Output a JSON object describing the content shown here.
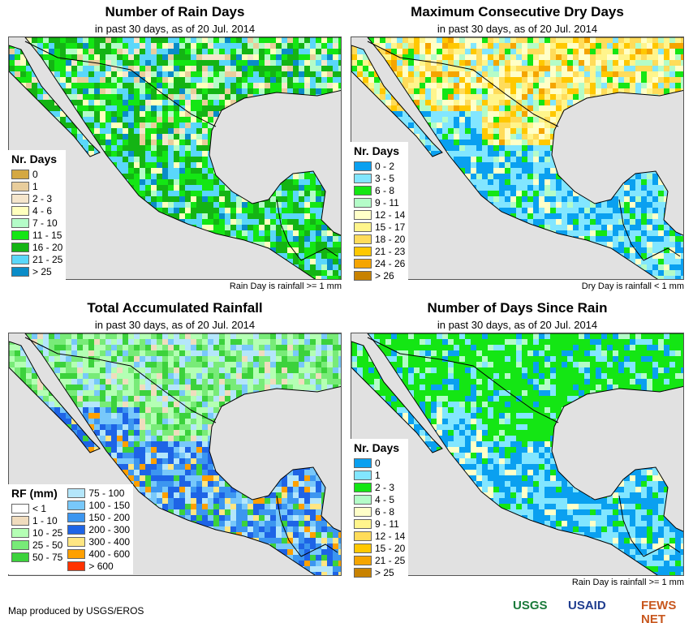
{
  "panels": [
    {
      "title": "Number of Rain Days",
      "subtitle": "in past 30 days, as of 20 Jul. 2014",
      "note": "Rain Day is rainfall >= 1 mm",
      "legend": {
        "title": "Nr. Days",
        "items": [
          {
            "label": "0",
            "color": "#d4a843"
          },
          {
            "label": "1",
            "color": "#e8cd9c"
          },
          {
            "label": "2 - 3",
            "color": "#f5e6cc"
          },
          {
            "label": "4 - 6",
            "color": "#ffffbe"
          },
          {
            "label": "7 - 10",
            "color": "#b4fcc8"
          },
          {
            "label": "11 - 15",
            "color": "#14e614"
          },
          {
            "label": "16 - 20",
            "color": "#14b414"
          },
          {
            "label": "21 - 25",
            "color": "#5ad7fa"
          },
          {
            "label": "> 25",
            "color": "#0a8cc8"
          }
        ]
      }
    },
    {
      "title": "Maximum Consecutive Dry Days",
      "subtitle": "in past 30 days, as of 20 Jul. 2014",
      "note": "Dry Day is rainfall < 1 mm",
      "legend": {
        "title": "Nr. Days",
        "items": [
          {
            "label": "0 - 2",
            "color": "#0aa0f0"
          },
          {
            "label": "3 - 5",
            "color": "#82e6ff"
          },
          {
            "label": "6 - 8",
            "color": "#14e614"
          },
          {
            "label": "9 - 11",
            "color": "#b4fcc8"
          },
          {
            "label": "12 - 14",
            "color": "#ffffc8"
          },
          {
            "label": "15 - 17",
            "color": "#fff58c"
          },
          {
            "label": "18 - 20",
            "color": "#ffdc5a"
          },
          {
            "label": "21 - 23",
            "color": "#ffc800"
          },
          {
            "label": "24 - 26",
            "color": "#f5a500"
          },
          {
            "label": "> 26",
            "color": "#c88200"
          }
        ]
      }
    },
    {
      "title": "Total Accumulated Rainfall",
      "subtitle": "in past 30 days, as of 20 Jul. 2014",
      "note": "",
      "legend": {
        "title": "RF (mm)",
        "items": [
          {
            "label": "< 1",
            "color": "#ffffff"
          },
          {
            "label": "1 - 10",
            "color": "#f0dcbe"
          },
          {
            "label": "10 - 25",
            "color": "#b4ffb4"
          },
          {
            "label": "25 - 50",
            "color": "#78eb78"
          },
          {
            "label": "50 - 75",
            "color": "#3cd23c"
          }
        ],
        "items2": [
          {
            "label": "75 - 100",
            "color": "#b4e6fa"
          },
          {
            "label": "100 - 150",
            "color": "#78c8fa"
          },
          {
            "label": "150 - 200",
            "color": "#3c96f0"
          },
          {
            "label": "200 - 300",
            "color": "#1e64e6"
          },
          {
            "label": "300 - 400",
            "color": "#ffe682"
          },
          {
            "label": "400 - 600",
            "color": "#ffa000"
          },
          {
            "label": "> 600",
            "color": "#ff3200"
          }
        ]
      }
    },
    {
      "title": "Number of Days Since Rain",
      "subtitle": "in past 30 days, as of 20 Jul. 2014",
      "note": "Rain Day is rainfall >= 1 mm",
      "legend": {
        "title": "Nr. Days",
        "items": [
          {
            "label": "0",
            "color": "#0aa0f0"
          },
          {
            "label": "1",
            "color": "#82e6ff"
          },
          {
            "label": "2 - 3",
            "color": "#14e614"
          },
          {
            "label": "4 - 5",
            "color": "#b4fcc8"
          },
          {
            "label": "6 - 8",
            "color": "#ffffc8"
          },
          {
            "label": "9 - 11",
            "color": "#fff58c"
          },
          {
            "label": "12 - 14",
            "color": "#ffdc5a"
          },
          {
            "label": "15 - 20",
            "color": "#ffc800"
          },
          {
            "label": "21 - 25",
            "color": "#f5a500"
          },
          {
            "label": "> 25",
            "color": "#c88200"
          }
        ]
      }
    }
  ],
  "credit": "Map produced by USGS/EROS",
  "logos": [
    "USGS",
    "USAID",
    "FEWS NET"
  ]
}
